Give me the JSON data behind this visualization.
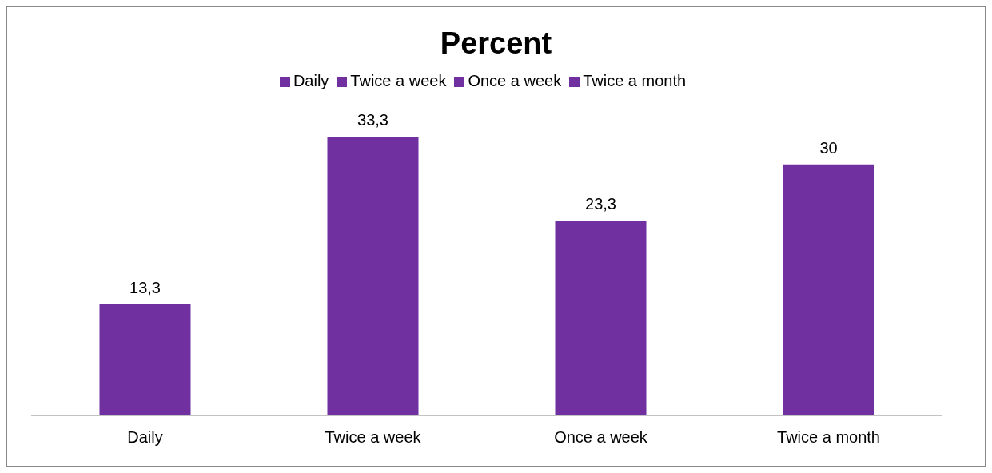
{
  "chart_data": {
    "type": "bar",
    "title": "Percent",
    "categories": [
      "Daily",
      "Twice a week",
      "Once a week",
      "Twice a month"
    ],
    "stacked": true,
    "series": [
      {
        "name": "Daily",
        "color": "#7030a0",
        "values": [
          13.3,
          null,
          null,
          null
        ],
        "value_labels": [
          "13,3",
          null,
          null,
          null
        ]
      },
      {
        "name": "Twice a week",
        "color": "#7030a0",
        "values": [
          null,
          33.3,
          null,
          null
        ],
        "value_labels": [
          null,
          "33,3",
          null,
          null
        ]
      },
      {
        "name": "Once a week",
        "color": "#7030a0",
        "values": [
          null,
          null,
          23.3,
          null
        ],
        "value_labels": [
          null,
          null,
          "23,3",
          null
        ]
      },
      {
        "name": "Twice a month",
        "color": "#7030a0",
        "values": [
          null,
          null,
          null,
          30
        ],
        "value_labels": [
          null,
          null,
          null,
          "30"
        ]
      }
    ],
    "legend": "top",
    "grid": false
  }
}
